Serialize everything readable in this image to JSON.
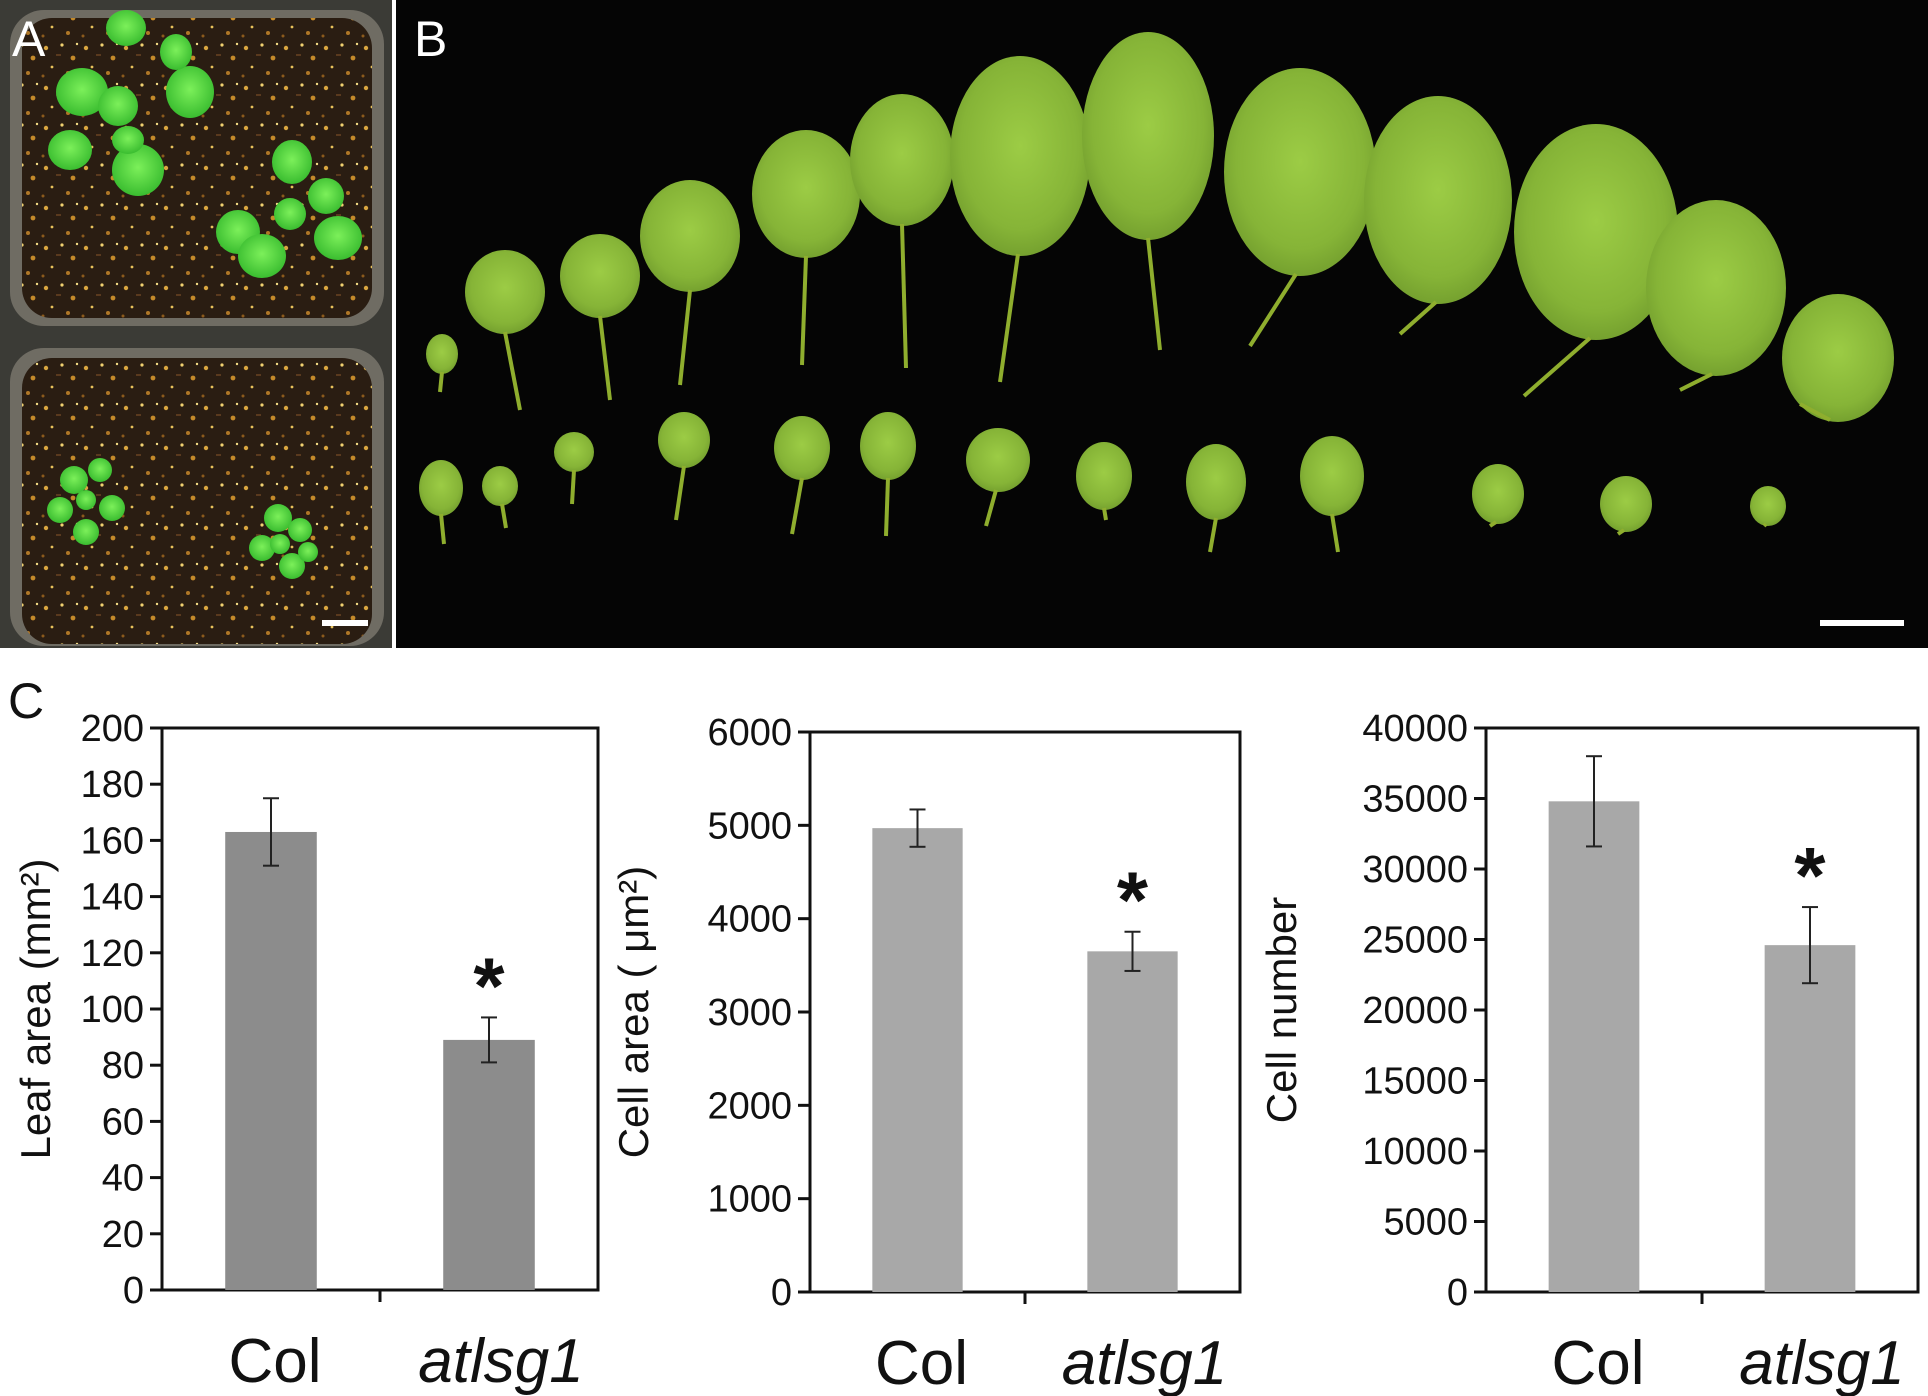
{
  "panels": {
    "a": {
      "letter": "A"
    },
    "b": {
      "letter": "B"
    },
    "c": {
      "letter": "C"
    }
  },
  "colors": {
    "bar_dark": "#8c8c8c",
    "bar_light": "#a8a8a8",
    "photo_background": "#050505",
    "leaf_green": "#8fbf3a",
    "rosette_green": "#4fd43a",
    "soil": "#2a1d12"
  },
  "chart_data": [
    {
      "type": "bar",
      "categories": [
        "Col",
        "atlsg1"
      ],
      "values": [
        163,
        89
      ],
      "errors": [
        12,
        8
      ],
      "significance": [
        "",
        "*"
      ],
      "ylabel": "Leaf area (mm²)",
      "ylim": [
        0,
        200
      ],
      "yticks": [
        "0",
        "20",
        "40",
        "60",
        "80",
        "100",
        "120",
        "140",
        "160",
        "180",
        "200"
      ],
      "grid": false,
      "bar_color": "#8c8c8c"
    },
    {
      "type": "bar",
      "categories": [
        "Col",
        "atlsg1"
      ],
      "values": [
        4970,
        3650
      ],
      "errors": [
        200,
        210
      ],
      "significance": [
        "",
        "*"
      ],
      "ylabel": "Cell area ( μm²)",
      "ylim": [
        0,
        6000
      ],
      "yticks": [
        "0",
        "1000",
        "2000",
        "3000",
        "4000",
        "5000",
        "6000"
      ],
      "grid": false,
      "bar_color": "#a8a8a8"
    },
    {
      "type": "bar",
      "categories": [
        "Col",
        "atlsg1"
      ],
      "values": [
        34800,
        24600
      ],
      "errors": [
        3200,
        2700
      ],
      "significance": [
        "",
        "*"
      ],
      "ylabel": "Cell number",
      "ylim": [
        0,
        40000
      ],
      "yticks": [
        "0",
        "5000",
        "10000",
        "15000",
        "20000",
        "25000",
        "30000",
        "35000",
        "40000"
      ],
      "grid": false,
      "bar_color": "#a8a8a8"
    }
  ]
}
